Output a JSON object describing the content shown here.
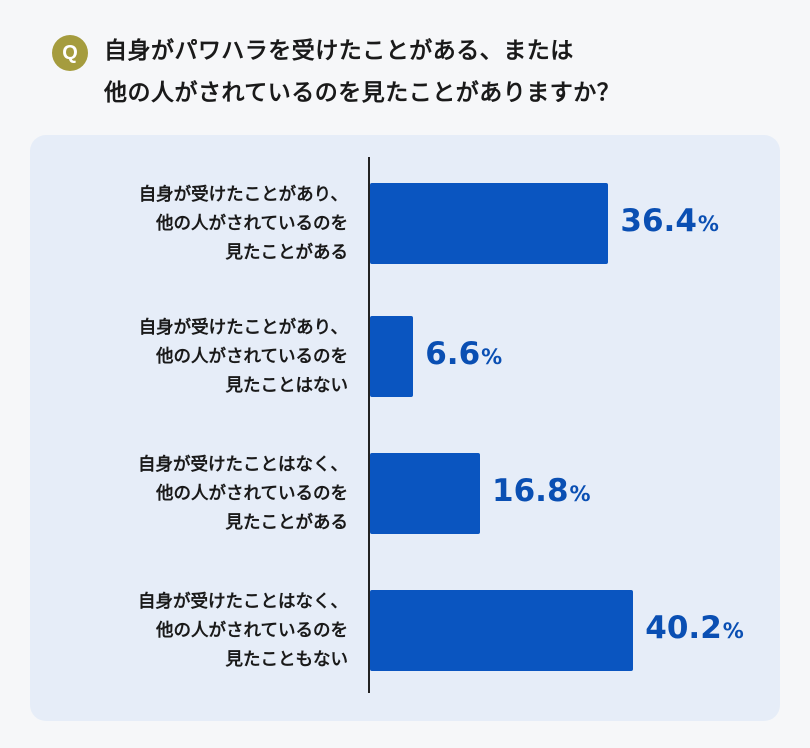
{
  "question": {
    "badge": "Q",
    "line1": "自身がパワハラを受けたことがある、または",
    "line2": "他の人がされているのを見たことがありますか？"
  },
  "chart_data": {
    "type": "bar",
    "orientation": "horizontal",
    "categories": [
      [
        "自身が受けたことがあり、",
        "他の人がされているのを",
        "見たことがある"
      ],
      [
        "自身が受けたことがあり、",
        "他の人がされているのを",
        "見たことはない"
      ],
      [
        "自身が受けたことはなく、",
        "他の人がされているのを",
        "見たことがある"
      ],
      [
        "自身が受けたことはなく、",
        "他の人がされているのを",
        "見たこともない"
      ]
    ],
    "values": [
      36.4,
      6.6,
      16.8,
      40.2
    ],
    "value_labels": [
      "36.4",
      "6.6",
      "16.8",
      "40.2"
    ],
    "unit": "%",
    "bar_color": "#0a55c0",
    "value_color": "#0a4fb3"
  },
  "colors": {
    "badge": "#a59c3e",
    "panel": "#e6edf8",
    "background": "#f6f7f9"
  }
}
